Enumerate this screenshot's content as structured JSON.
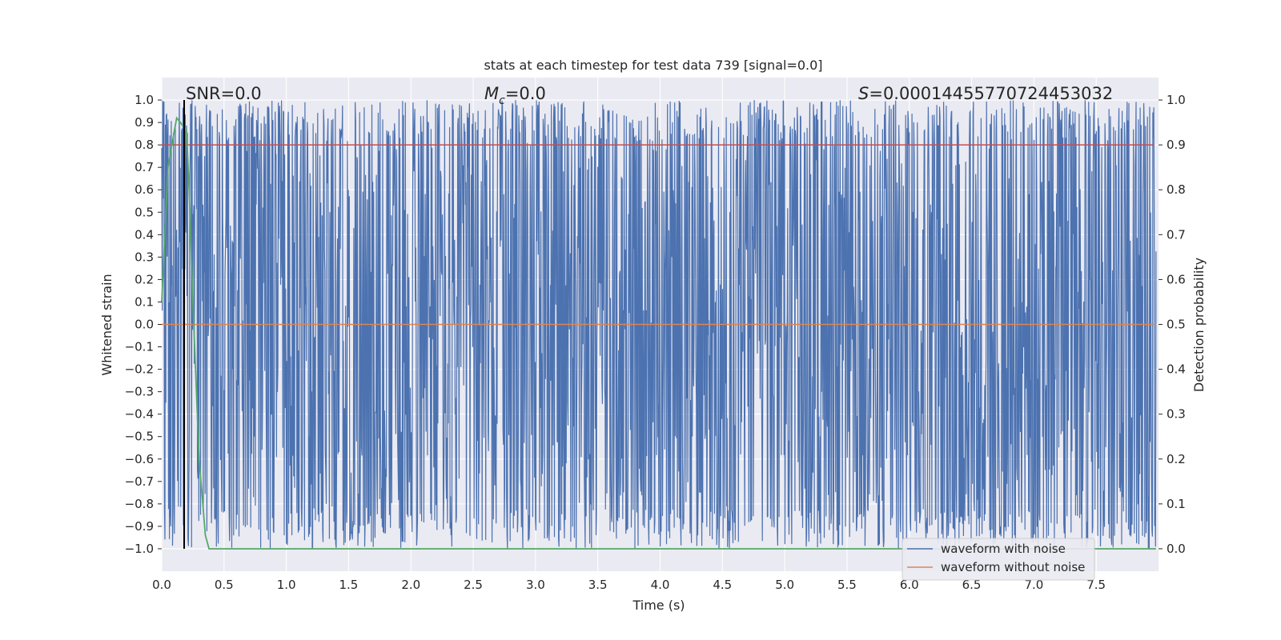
{
  "chart_data": {
    "type": "line",
    "title": "stats at each timestep for test data 739 [signal=0.0]",
    "xlabel": "Time (s)",
    "ylabel_left": "Whitened strain",
    "ylabel_right": "Detection probability",
    "xlim": [
      0.0,
      8.0
    ],
    "ylim_left": [
      -1.1,
      1.1
    ],
    "ylim_right": [
      -0.05,
      1.05
    ],
    "xticks": [
      "0.0",
      "0.5",
      "1.0",
      "1.5",
      "2.0",
      "2.5",
      "3.0",
      "3.5",
      "4.0",
      "4.5",
      "5.0",
      "5.5",
      "6.0",
      "6.5",
      "7.0",
      "7.5"
    ],
    "yticks_left": [
      "1.0",
      "0.9",
      "0.8",
      "0.7",
      "0.6",
      "0.5",
      "0.4",
      "0.3",
      "0.2",
      "0.1",
      "0.0",
      "−0.1",
      "−0.2",
      "−0.3",
      "−0.4",
      "−0.5",
      "−0.6",
      "−0.7",
      "−0.8",
      "−0.9",
      "−1.0"
    ],
    "yticks_right": [
      "1.0",
      "0.9",
      "0.8",
      "0.7",
      "0.6",
      "0.5",
      "0.4",
      "0.3",
      "0.2",
      "0.1",
      "0.0"
    ],
    "grid": true,
    "annotations": {
      "snr": "SNR=0.0",
      "mc_symbol": "M",
      "mc_sub": "c",
      "mc_value": "=0.0",
      "s_symbol": "S",
      "s_value": "=0.00014455770724453032"
    },
    "series": [
      {
        "name": "waveform with noise",
        "color": "#4c72b0",
        "description_range": [
          -1.0,
          1.0
        ],
        "note_x": [
          0.0,
          8.0
        ]
      },
      {
        "name": "waveform without noise",
        "color": "#dd8452",
        "values_constant": 0.0
      },
      {
        "color": "#55a868",
        "axis": "right",
        "x": [
          0.0,
          0.05,
          0.1,
          0.12,
          0.15,
          0.2,
          0.22,
          0.25,
          0.3,
          0.35,
          0.38,
          0.4,
          8.0
        ],
        "y": [
          0.55,
          0.85,
          0.93,
          0.96,
          0.95,
          0.93,
          0.8,
          0.55,
          0.2,
          0.03,
          0.0,
          0.0,
          0.0
        ]
      },
      {
        "color": "#c44e52",
        "axis": "right",
        "values_constant": 0.9
      },
      {
        "color": "#000000",
        "type": "vline",
        "x": 0.18
      }
    ],
    "legend": {
      "placement": "lower-right",
      "entries": [
        {
          "label": "waveform with noise",
          "color": "#4c72b0"
        },
        {
          "label": "waveform without noise",
          "color": "#dd8452"
        }
      ]
    },
    "colors": {
      "background": "#eaeaf2",
      "grid": "#ffffff",
      "noise": "#4c72b0",
      "clean": "#dd8452",
      "prob": "#55a868",
      "threshold": "#c44e52",
      "marker": "#000000"
    }
  }
}
